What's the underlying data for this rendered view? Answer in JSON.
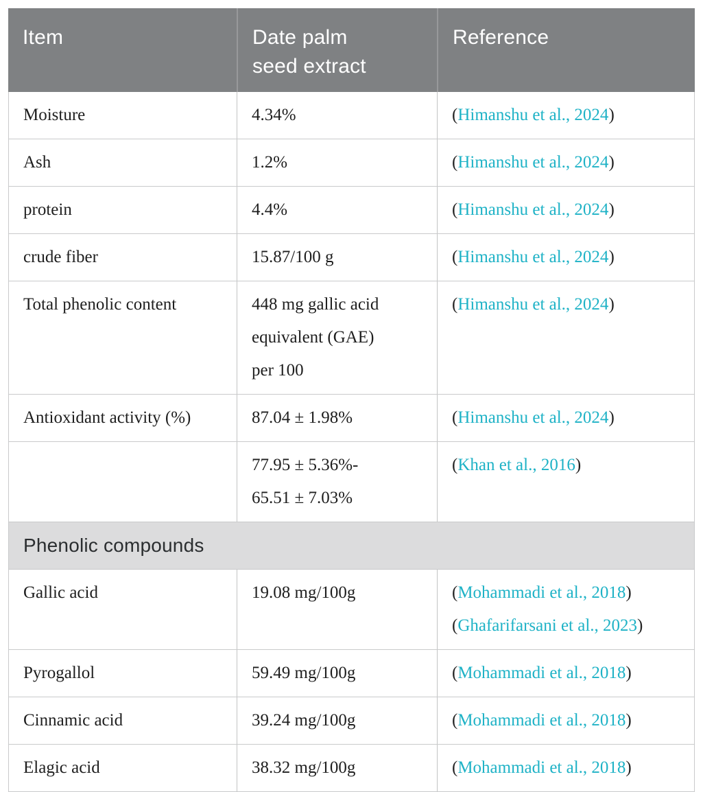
{
  "colors": {
    "header_bg": "#7f8183",
    "header_text": "#ffffff",
    "header_divider": "#98999b",
    "section_bg": "#dcdcdd",
    "section_text": "#2b2e30",
    "body_text": "#1e1e1e",
    "citation_teal": "#1eb2c6",
    "row_border": "#c9cacb"
  },
  "table": {
    "columns": [
      {
        "label": "Item"
      },
      {
        "label": "Date palm\nseed extract"
      },
      {
        "label": "Reference"
      }
    ],
    "rows": [
      {
        "item": "Moisture",
        "value": "4.34%",
        "refs": [
          {
            "open": "(",
            "text": "Himanshu et al., 2024",
            "close": ")"
          }
        ]
      },
      {
        "item": "Ash",
        "value": "1.2%",
        "refs": [
          {
            "open": "(",
            "text": "Himanshu et al., 2024",
            "close": ")"
          }
        ]
      },
      {
        "item": "protein",
        "value": "4.4%",
        "refs": [
          {
            "open": "(",
            "text": "Himanshu et al., 2024",
            "close": ")"
          }
        ]
      },
      {
        "item": "crude fiber",
        "value": "15.87/100 g",
        "refs": [
          {
            "open": "(",
            "text": "Himanshu et al., 2024",
            "close": ")"
          }
        ]
      },
      {
        "item": "Total phenolic content",
        "value": "448 mg gallic acid\nequivalent (GAE)\nper 100",
        "refs": [
          {
            "open": "(",
            "text": "Himanshu et al., 2024",
            "close": ")"
          }
        ]
      },
      {
        "item": "Antioxidant activity (%)",
        "value": "87.04 ± 1.98%",
        "refs": [
          {
            "open": "(",
            "text": "Himanshu et al., 2024",
            "close": ")"
          }
        ]
      },
      {
        "item": "",
        "value": "77.95 ± 5.36%-\n65.51 ± 7.03%",
        "refs": [
          {
            "open": "(",
            "text": "Khan et al., 2016",
            "close": ")"
          }
        ]
      },
      {
        "item": "Gallic acid",
        "value": "19.08 mg/100g",
        "refs": [
          {
            "open": "(",
            "text": "Mohammadi et al., 2018",
            "close": ")"
          },
          {
            "open": "(",
            "text": "Ghafarifarsani et al., 2023",
            "close": ")"
          }
        ]
      },
      {
        "item": "Pyrogallol",
        "value": "59.49 mg/100g",
        "refs": [
          {
            "open": "(",
            "text": "Mohammadi et al., 2018",
            "close": ")"
          }
        ]
      },
      {
        "item": "Cinnamic acid",
        "value": "39.24 mg/100g",
        "refs": [
          {
            "open": "(",
            "text": "Mohammadi et al., 2018",
            "close": ")"
          }
        ]
      },
      {
        "item": "Elagic acid",
        "value": "38.32 mg/100g",
        "refs": [
          {
            "open": "(",
            "text": "Mohammadi et al., 2018",
            "close": ")"
          }
        ]
      }
    ],
    "section": {
      "label": "Phenolic compounds"
    }
  }
}
